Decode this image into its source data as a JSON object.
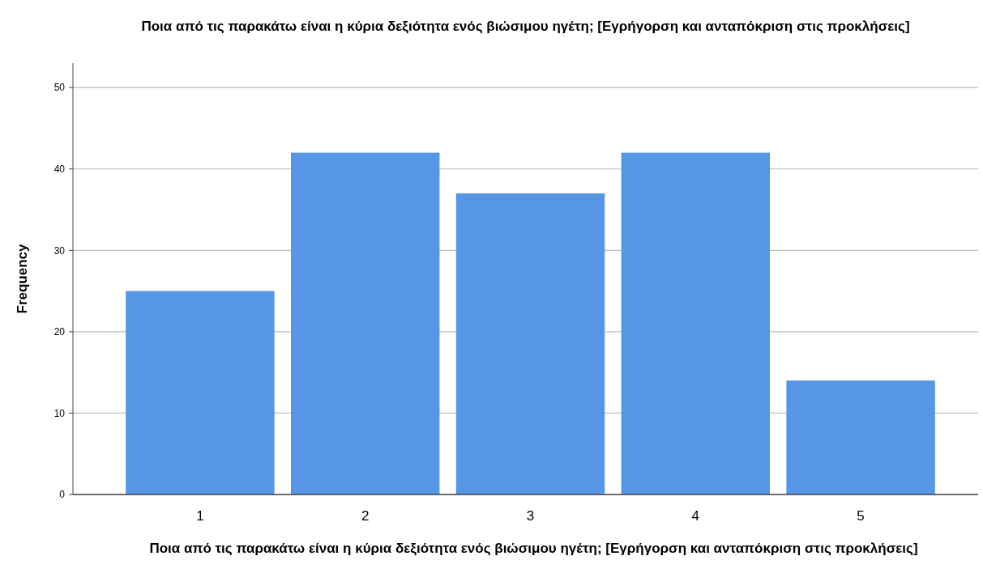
{
  "chart_data": {
    "type": "bar",
    "title": "Ποια από τις παρακάτω είναι η κύρια δεξιότητα ενός βιώσιμου ηγέτη; [Εγρήγορση και ανταπόκριση στις προκλήσεις]",
    "xlabel": "Ποια από τις παρακάτω είναι η κύρια δεξιότητα ενός βιώσιμου ηγέτη; [Εγρήγορση και ανταπόκριση στις προκλήσεις]",
    "ylabel": "Frequency",
    "categories": [
      "1",
      "2",
      "3",
      "4",
      "5"
    ],
    "values": [
      25,
      42,
      37,
      42,
      14
    ],
    "color": "#5596e6",
    "ylim": [
      0,
      53
    ],
    "yticks": [
      0,
      10,
      20,
      30,
      40,
      50
    ],
    "grid": "y"
  }
}
